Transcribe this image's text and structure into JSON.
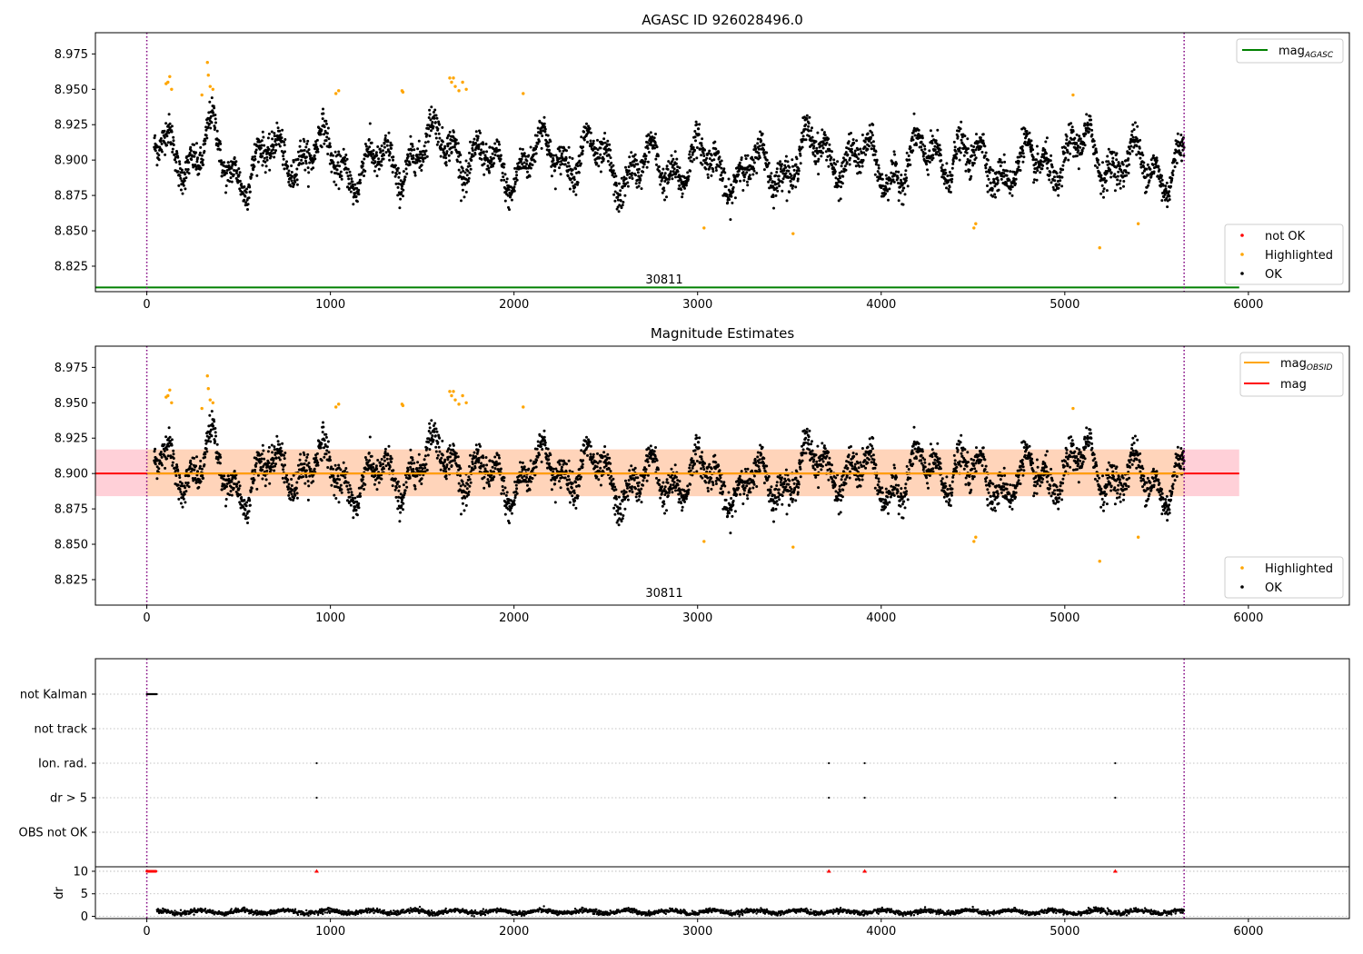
{
  "chart_data": [
    {
      "type": "scatter",
      "title": "AGASC ID 926028496.0",
      "xlim": [
        -280,
        6550
      ],
      "ylim": [
        8.807,
        8.99
      ],
      "xticks": [
        0,
        1000,
        2000,
        3000,
        4000,
        5000,
        6000
      ],
      "yticks": [
        8.825,
        8.85,
        8.875,
        8.9,
        8.925,
        8.95,
        8.975
      ],
      "vlines": [
        0,
        5650
      ],
      "annotation": "30811",
      "legend_upper": [
        {
          "name": "mag",
          "sub": "AGASC",
          "color": "#008000",
          "style": "line"
        }
      ],
      "legend_lower": [
        {
          "name": "not OK",
          "color": "#ff0000",
          "style": "dot"
        },
        {
          "name": "Highlighted",
          "color": "#ffa500",
          "style": "dot"
        },
        {
          "name": "OK",
          "color": "#000000",
          "style": "dot"
        }
      ],
      "series": [
        {
          "name": "mag",
          "type": "hline",
          "y": 8.81,
          "x": [
            -280,
            5950
          ],
          "color": "#008000"
        },
        {
          "name": "OK",
          "type": "timeseries",
          "x_range": [
            0,
            5650
          ],
          "mean": 8.9,
          "color": "#000000"
        },
        {
          "name": "Highlighted",
          "type": "scatter",
          "color": "#ffa500",
          "points": [
            [
              105,
              8.954
            ],
            [
              115,
              8.955
            ],
            [
              125,
              8.959
            ],
            [
              135,
              8.95
            ],
            [
              300,
              8.946
            ],
            [
              330,
              8.969
            ],
            [
              335,
              8.96
            ],
            [
              345,
              8.952
            ],
            [
              360,
              8.95
            ],
            [
              1030,
              8.947
            ],
            [
              1045,
              8.949
            ],
            [
              1390,
              8.949
            ],
            [
              1395,
              8.948
            ],
            [
              1650,
              8.958
            ],
            [
              1660,
              8.955
            ],
            [
              1670,
              8.958
            ],
            [
              1680,
              8.952
            ],
            [
              1700,
              8.949
            ],
            [
              1720,
              8.955
            ],
            [
              1740,
              8.95
            ],
            [
              2050,
              8.947
            ],
            [
              3035,
              8.852
            ],
            [
              3520,
              8.848
            ],
            [
              4505,
              8.852
            ],
            [
              4515,
              8.855
            ],
            [
              5045,
              8.946
            ],
            [
              5190,
              8.838
            ],
            [
              5400,
              8.855
            ]
          ]
        }
      ]
    },
    {
      "type": "scatter",
      "title": "Magnitude Estimates",
      "xlim": [
        -280,
        6550
      ],
      "ylim": [
        8.807,
        8.99
      ],
      "xticks": [
        0,
        1000,
        2000,
        3000,
        4000,
        5000,
        6000
      ],
      "yticks": [
        8.825,
        8.85,
        8.875,
        8.9,
        8.925,
        8.95,
        8.975
      ],
      "vlines": [
        0,
        5650
      ],
      "annotation": "30811",
      "bands": [
        {
          "x": [
            -280,
            5950
          ],
          "y": [
            8.884,
            8.917
          ],
          "color": "#ffc0cb"
        },
        {
          "x": [
            0,
            5650
          ],
          "y": [
            8.884,
            8.917
          ],
          "color": "#ffd5b0"
        }
      ],
      "legend_upper": [
        {
          "name": "mag",
          "sub": "OBSID",
          "color": "#ffa500",
          "style": "line"
        },
        {
          "name": "mag",
          "sub": "",
          "color": "#ff0000",
          "style": "line"
        }
      ],
      "legend_lower": [
        {
          "name": "Highlighted",
          "color": "#ffa500",
          "style": "dot"
        },
        {
          "name": "OK",
          "color": "#000000",
          "style": "dot"
        }
      ],
      "series": [
        {
          "name": "mag",
          "type": "hline",
          "y": 8.9,
          "x": [
            -280,
            5950
          ],
          "color": "#ff0000"
        },
        {
          "name": "mag_OBSID",
          "type": "hline",
          "y": 8.9,
          "x": [
            0,
            5650
          ],
          "color": "#ffa500"
        }
      ]
    },
    {
      "type": "scatter",
      "title": "",
      "xlim": [
        -280,
        6550
      ],
      "xticks": [
        0,
        1000,
        2000,
        3000,
        4000,
        5000,
        6000
      ],
      "vlines": [
        0,
        5650
      ],
      "categories": [
        "not Kalman",
        "not track",
        "Ion. rad.",
        "dr > 5",
        "OBS not OK"
      ],
      "flags": {
        "not Kalman": [
          0,
          55
        ],
        "not track": [],
        "Ion. rad.": [
          925,
          3715,
          3910,
          5275
        ],
        "dr > 5": [
          925,
          3715,
          3910,
          5275
        ],
        "OBS not OK": []
      },
      "dr": {
        "ylabel": "dr",
        "ylim": [
          -0.5,
          11
        ],
        "yticks": [
          0,
          5,
          10
        ],
        "x_range": [
          55,
          5650
        ],
        "mean": 1.0,
        "outliers": [
          [
            925,
            10
          ],
          [
            3715,
            10
          ],
          [
            3910,
            10
          ],
          [
            5275,
            10
          ]
        ],
        "outlier_color": "#ff0000"
      }
    }
  ]
}
